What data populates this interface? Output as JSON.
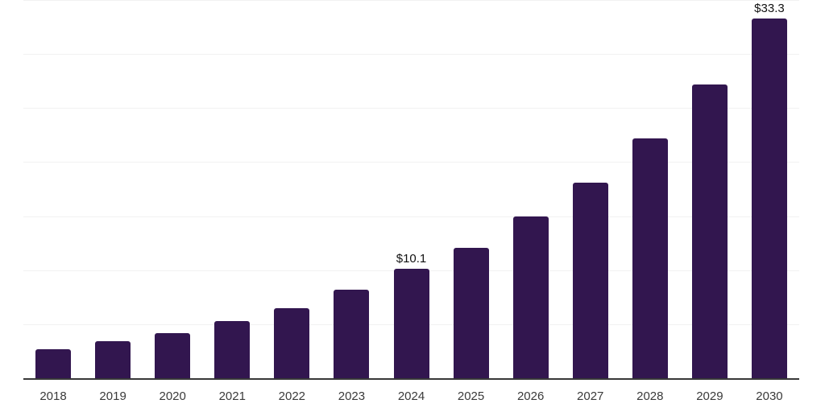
{
  "chart_data": {
    "type": "bar",
    "title": "",
    "xlabel": "",
    "ylabel": "",
    "categories": [
      "2018",
      "2019",
      "2020",
      "2021",
      "2022",
      "2023",
      "2024",
      "2025",
      "2026",
      "2027",
      "2028",
      "2029",
      "2030"
    ],
    "values": [
      2.7,
      3.4,
      4.2,
      5.3,
      6.5,
      8.2,
      10.1,
      12.1,
      15.0,
      18.1,
      22.2,
      27.2,
      33.3
    ],
    "value_labels": [
      "",
      "",
      "",
      "",
      "",
      "",
      "$10.1",
      "",
      "",
      "",
      "",
      "",
      "$33.3"
    ],
    "ylim": [
      0,
      35
    ],
    "gridline_values": [
      5,
      10,
      15,
      20,
      25,
      30,
      35
    ],
    "grid": "horizontal",
    "legend_position": "none",
    "currency_prefix": "$"
  },
  "colors": {
    "bar": "#32164f",
    "gridline": "#f1f1f1",
    "axis_line": "#383838",
    "tick_label": "#3a3a3a",
    "value_label": "#111111",
    "background": "#ffffff"
  }
}
